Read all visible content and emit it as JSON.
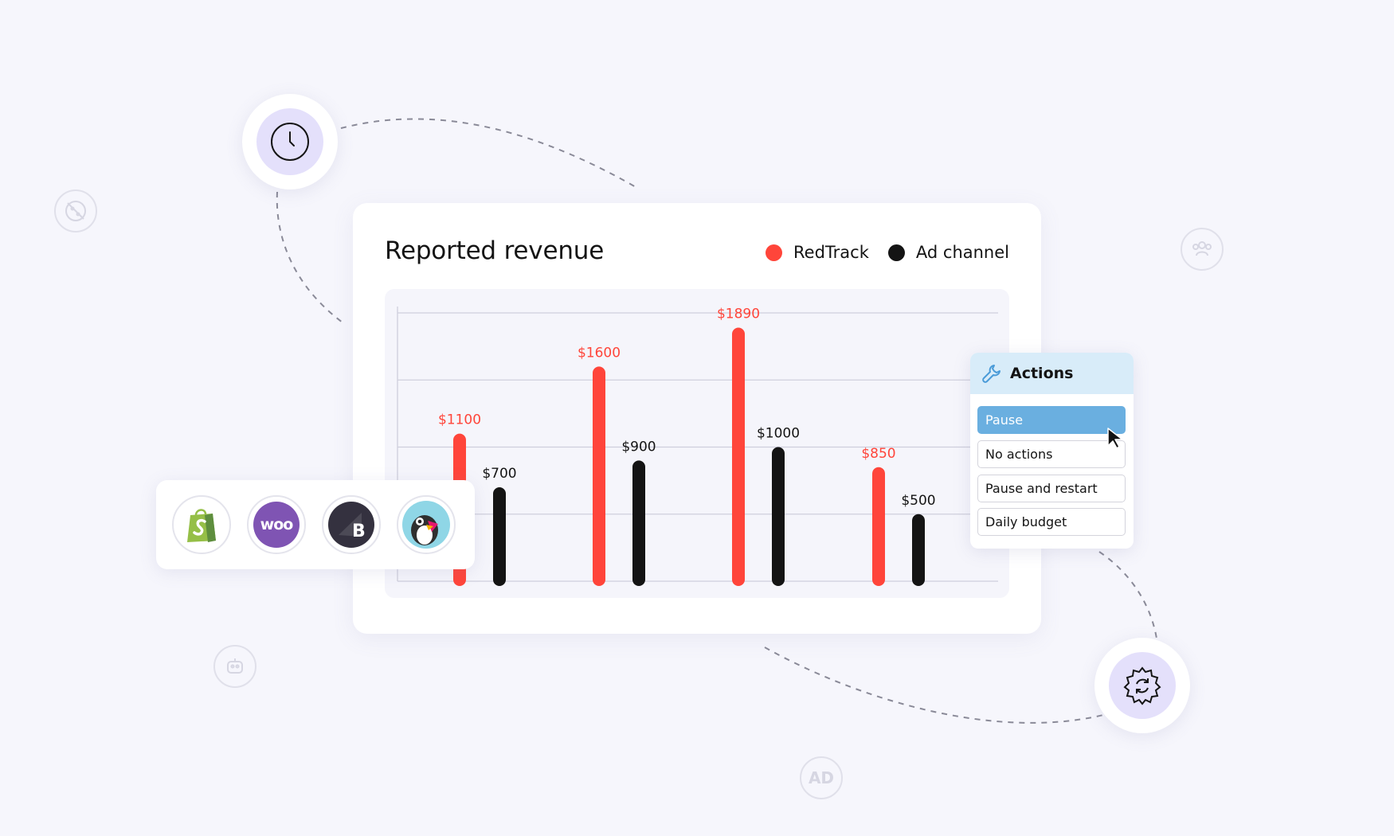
{
  "chart_data": {
    "type": "bar",
    "title": "Reported revenue",
    "categories": [
      "",
      "",
      "",
      ""
    ],
    "series": [
      {
        "name": "RedTrack",
        "color": "#ff453a",
        "values": [
          1100,
          1600,
          1890,
          850
        ],
        "labels": [
          "$1100",
          "$1600",
          "$1890",
          "$850"
        ]
      },
      {
        "name": "Ad channel",
        "color": "#141414",
        "values": [
          700,
          900,
          1000,
          500
        ],
        "labels": [
          "$700",
          "$900",
          "$1000",
          "$500"
        ]
      }
    ],
    "ylim": [
      0,
      2000
    ],
    "grid": true,
    "legend_position": "top-right"
  },
  "actions_menu": {
    "title": "Actions",
    "icon": "wrench-icon",
    "items": [
      {
        "label": "Pause",
        "selected": true
      },
      {
        "label": "No actions",
        "selected": false
      },
      {
        "label": "Pause and restart",
        "selected": false
      },
      {
        "label": "Daily budget",
        "selected": false
      }
    ]
  },
  "integrations": [
    "shopify-logo",
    "woocommerce-logo",
    "bigcommerce-logo",
    "prestashop-logo"
  ],
  "integration_text": {
    "woo": "woo"
  },
  "decorations": {
    "ad_badge": "AD"
  },
  "colors": {
    "background": "#f6f6fc",
    "redtrack": "#ff453a",
    "ad_channel": "#141414",
    "accent_purple": "#e4e0fb",
    "actions_header": "#d8ecf9",
    "selected_action": "#6aafe0"
  }
}
